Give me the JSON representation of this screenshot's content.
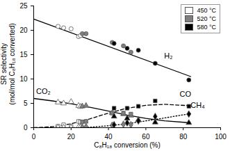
{
  "chart_data": {
    "type": "scatter",
    "x_label": "C₈H₁₈ conversion (%)",
    "y_label": "SR selectivity\n(mol/mol C₈H₁₈ converted)",
    "xlim": [
      0,
      100
    ],
    "xticks": [
      0,
      20,
      40,
      60,
      80,
      100
    ],
    "ylim": [
      0,
      25
    ],
    "yticks": [
      0,
      5,
      10,
      15,
      20,
      25
    ],
    "legend": "top-right",
    "series": [
      {
        "name": "450 °C",
        "color": "#ffffff",
        "points": [
          {
            "name": "H₂",
            "x": [
              13,
              16,
              20,
              24,
              25
            ],
            "values": [
              20.8,
              20.5,
              20.3,
              18.7,
              18.9
            ]
          },
          {
            "name": "CO₂",
            "x": [
              13,
              16,
              20,
              24,
              25
            ],
            "values": [
              5.2,
              5.0,
              5.3,
              4.5,
              4.3
            ]
          },
          {
            "name": "CO",
            "x": [
              13,
              16,
              20,
              24,
              25
            ],
            "values": [
              0.3,
              0.6,
              0.3,
              1.3,
              1.2
            ]
          },
          {
            "name": "CH₄",
            "x": [
              13,
              16,
              20,
              24,
              25
            ],
            "values": [
              0.0,
              0.0,
              0.0,
              0.1,
              0.1
            ]
          }
        ]
      },
      {
        "name": "520 °C",
        "color": "#808080",
        "points": [
          {
            "name": "H₂",
            "x": [
              26,
              28,
              42,
              48,
              52
            ],
            "values": [
              19.3,
              19.3,
              17.5,
              16.8,
              15.5
            ]
          },
          {
            "name": "CO₂",
            "x": [
              26,
              28,
              42,
              48,
              52
            ],
            "values": [
              4.4,
              4.5,
              3.0,
              2.8,
              2.5
            ]
          },
          {
            "name": "CO",
            "x": [
              26,
              28,
              42,
              48,
              52
            ],
            "values": [
              1.2,
              1.3,
              3.0,
              3.0,
              2.8
            ]
          },
          {
            "name": "CH₄",
            "x": [
              26,
              28,
              42,
              48,
              52
            ],
            "values": [
              0.1,
              0.2,
              0.5,
              0.7,
              0.6
            ]
          }
        ]
      },
      {
        "name": "580 °C",
        "color": "#000000",
        "points": [
          {
            "name": "H₂",
            "x": [
              43,
              50,
              56,
              65,
              83
            ],
            "values": [
              17.3,
              16.3,
              15.9,
              13.2,
              9.8
            ]
          },
          {
            "name": "CO₂",
            "x": [
              43,
              50,
              56,
              65,
              83
            ],
            "values": [
              2.3,
              1.9,
              1.6,
              1.1,
              1.0
            ]
          },
          {
            "name": "CO",
            "x": [
              43,
              50,
              56,
              65,
              83
            ],
            "values": [
              4.0,
              4.0,
              4.4,
              5.5,
              4.4
            ]
          },
          {
            "name": "CH₄",
            "x": [
              43,
              50,
              56,
              65,
              83
            ],
            "values": [
              0.6,
              1.0,
              1.4,
              2.3,
              2.8
            ]
          }
        ]
      }
    ],
    "trend_lines": [
      {
        "name": "H₂",
        "marker": "circle",
        "line_style": "solid",
        "color": "#000000",
        "x": [
          0,
          84
        ],
        "values": [
          22.3,
          10.5
        ]
      },
      {
        "name": "CO₂",
        "marker": "triangle",
        "line_style": "solid",
        "color": "#000000",
        "x": [
          0,
          10,
          20,
          30,
          40,
          50,
          60,
          70,
          84
        ],
        "values": [
          6.0,
          5.5,
          4.9,
          4.2,
          3.4,
          2.6,
          1.9,
          1.4,
          1.0
        ]
      },
      {
        "name": "CO",
        "marker": "square",
        "line_style": "dashed",
        "color": "#000000",
        "x": [
          0,
          10,
          20,
          30,
          40,
          50,
          60,
          70,
          84
        ],
        "values": [
          0.0,
          0.2,
          0.8,
          1.8,
          3.0,
          4.0,
          4.6,
          4.8,
          4.5
        ]
      },
      {
        "name": "CH₄",
        "marker": "diamond",
        "line_style": "dotted",
        "color": "#000000",
        "x": [
          20,
          30,
          40,
          50,
          60,
          70,
          84
        ],
        "values": [
          0.0,
          0.1,
          0.4,
          0.8,
          1.4,
          2.0,
          2.9
        ]
      }
    ]
  }
}
